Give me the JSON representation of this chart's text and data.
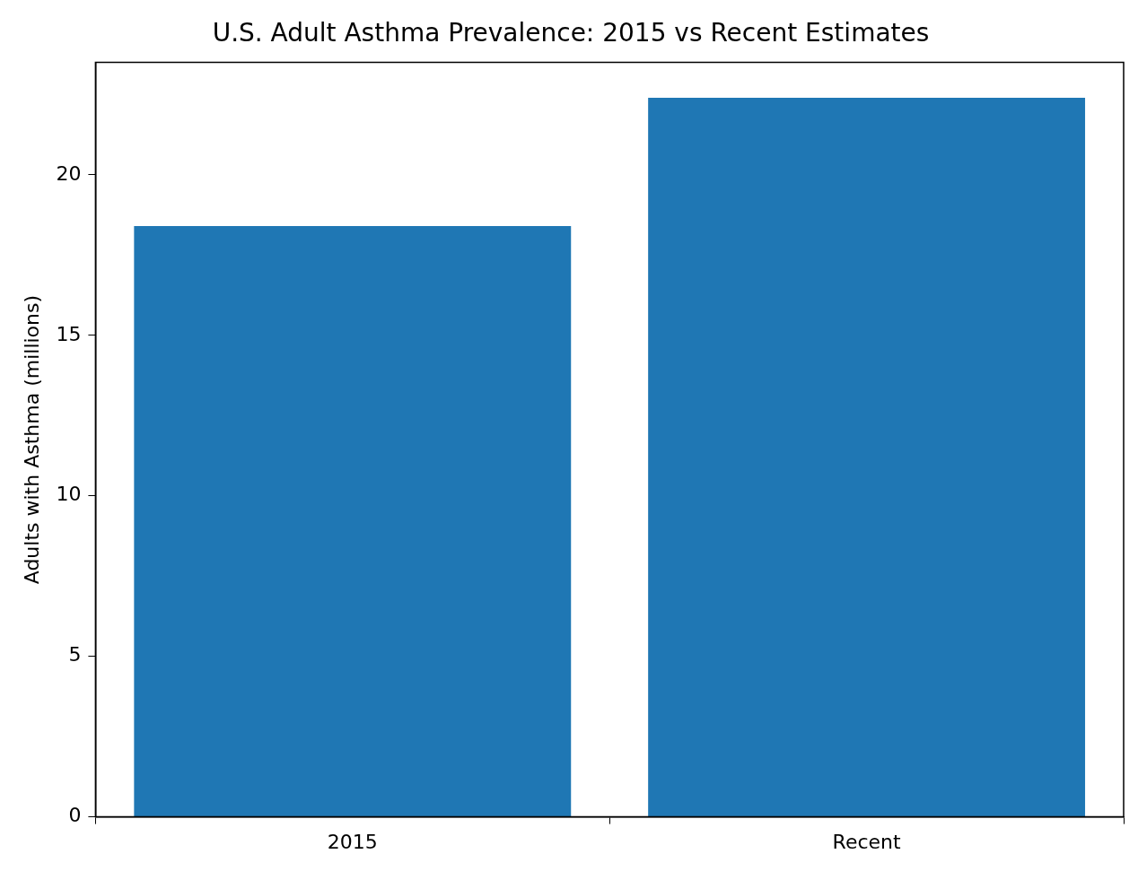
{
  "chart_data": {
    "type": "bar",
    "title": "U.S. Adult Asthma Prevalence: 2015 vs Recent Estimates",
    "categories": [
      "2015",
      "Recent"
    ],
    "values": [
      18.4,
      22.4
    ],
    "color": "#1f77b4",
    "ylabel": "Adults with Asthma (millions)",
    "ylim": [
      0,
      23.5
    ],
    "yticks": [
      0,
      5,
      10,
      15,
      20
    ],
    "grid": false,
    "legend": false
  }
}
